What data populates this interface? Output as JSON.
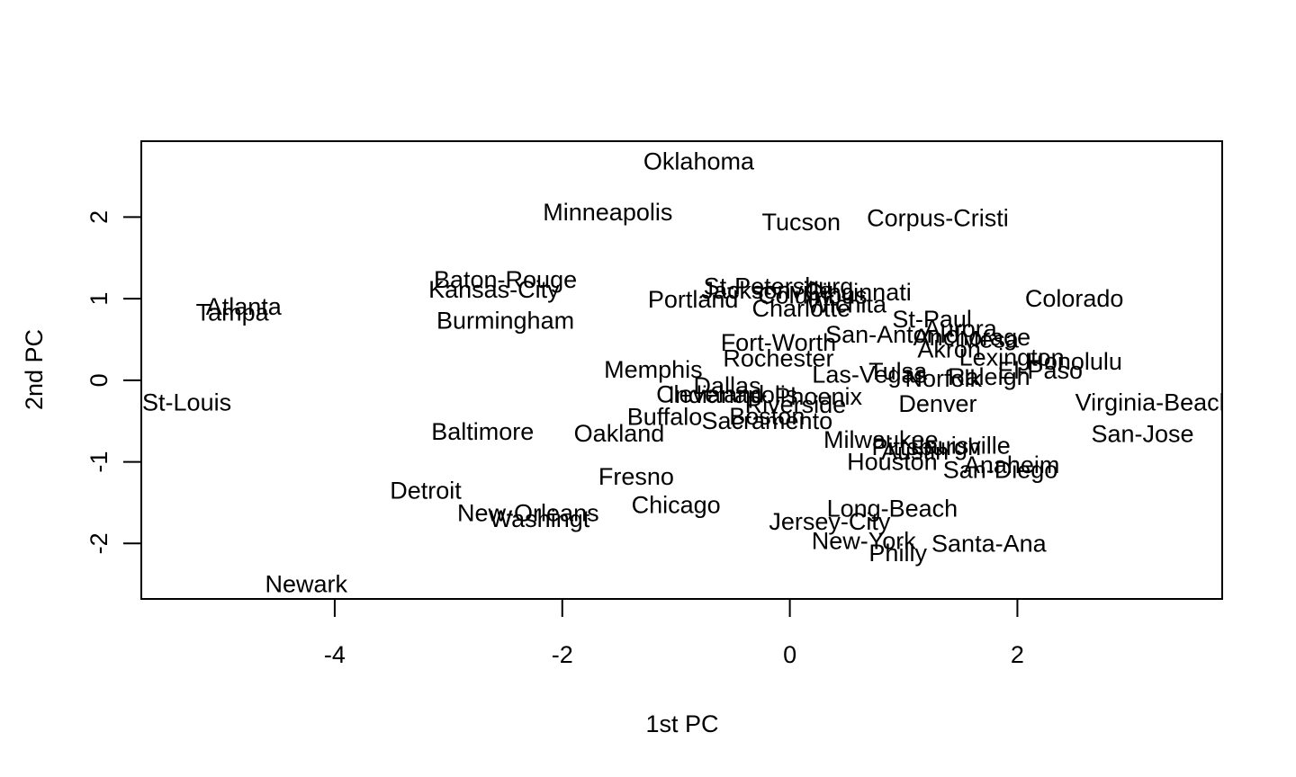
{
  "chart_data": {
    "type": "scatter",
    "title": "",
    "xlabel": "1st PC",
    "ylabel": "2nd PC",
    "xlim": [
      -5.7,
      3.8
    ],
    "ylim": [
      -2.68,
      2.93
    ],
    "xticks": [
      -4,
      -2,
      0,
      2
    ],
    "yticks": [
      -2,
      -1,
      0,
      1,
      2
    ],
    "xtick_labels": [
      "-4",
      "-2",
      "0",
      "2"
    ],
    "ytick_labels": [
      "-2",
      "-1",
      "0",
      "1",
      "2"
    ],
    "grid": false,
    "legend": "none",
    "points": [
      {
        "label": "Oklahoma",
        "x": -0.8,
        "y": 2.68
      },
      {
        "label": "Minneapolis",
        "x": -1.6,
        "y": 2.06
      },
      {
        "label": "Tucson",
        "x": 0.1,
        "y": 1.94
      },
      {
        "label": "Corpus-Cristi",
        "x": 1.3,
        "y": 1.99
      },
      {
        "label": "Baton-Rouge",
        "x": -2.5,
        "y": 1.23
      },
      {
        "label": "Kansas-City",
        "x": -2.6,
        "y": 1.11
      },
      {
        "label": "Atlanta",
        "x": -4.8,
        "y": 0.9
      },
      {
        "label": "Tampa",
        "x": -4.9,
        "y": 0.83
      },
      {
        "label": "Burmingham",
        "x": -2.5,
        "y": 0.73
      },
      {
        "label": "Portland",
        "x": -0.85,
        "y": 0.99
      },
      {
        "label": "St-Petersburg",
        "x": -0.1,
        "y": 1.15
      },
      {
        "label": "Jacksonville",
        "x": -0.2,
        "y": 1.1
      },
      {
        "label": "Cincinnati",
        "x": 0.6,
        "y": 1.08
      },
      {
        "label": "Columbus",
        "x": 0.2,
        "y": 1.04
      },
      {
        "label": "Wichita",
        "x": 0.5,
        "y": 0.93
      },
      {
        "label": "Charlotte",
        "x": 0.1,
        "y": 0.88
      },
      {
        "label": "Colorado",
        "x": 2.5,
        "y": 1.0
      },
      {
        "label": "St-Paul",
        "x": 1.25,
        "y": 0.75
      },
      {
        "label": "San-Antonio",
        "x": 0.9,
        "y": 0.56
      },
      {
        "label": "Aurora",
        "x": 1.5,
        "y": 0.63
      },
      {
        "label": "Anchorage",
        "x": 1.6,
        "y": 0.53
      },
      {
        "label": "Mesa",
        "x": 1.75,
        "y": 0.5
      },
      {
        "label": "Akron",
        "x": 1.4,
        "y": 0.38
      },
      {
        "label": "Fort-Worth",
        "x": -0.1,
        "y": 0.46
      },
      {
        "label": "Rochester",
        "x": -0.1,
        "y": 0.27
      },
      {
        "label": "Lexington",
        "x": 1.95,
        "y": 0.28
      },
      {
        "label": "Honolulu",
        "x": 2.5,
        "y": 0.23
      },
      {
        "label": "El-Paso",
        "x": 2.2,
        "y": 0.12
      },
      {
        "label": "Memphis",
        "x": -1.2,
        "y": 0.13
      },
      {
        "label": "Las-Vegas",
        "x": 0.7,
        "y": 0.07
      },
      {
        "label": "Tulsa",
        "x": 0.95,
        "y": 0.11
      },
      {
        "label": "Raleigh",
        "x": 1.75,
        "y": 0.04
      },
      {
        "label": "Norfolk",
        "x": 1.35,
        "y": 0.02
      },
      {
        "label": "Dallas",
        "x": -0.55,
        "y": -0.07
      },
      {
        "label": "Cleveland",
        "x": -0.7,
        "y": -0.17
      },
      {
        "label": "Indianapolis",
        "x": -0.5,
        "y": -0.18
      },
      {
        "label": "Phoenix",
        "x": 0.25,
        "y": -0.2
      },
      {
        "label": "Riverside",
        "x": 0.05,
        "y": -0.3
      },
      {
        "label": "St-Louis",
        "x": -5.3,
        "y": -0.27
      },
      {
        "label": "Denver",
        "x": 1.3,
        "y": -0.29
      },
      {
        "label": "Virginia-Beach",
        "x": 3.2,
        "y": -0.27
      },
      {
        "label": "Buffalo",
        "x": -1.1,
        "y": -0.45
      },
      {
        "label": "Boston",
        "x": -0.2,
        "y": -0.44
      },
      {
        "label": "Sacramento",
        "x": -0.2,
        "y": -0.5
      },
      {
        "label": "Baltimore",
        "x": -2.7,
        "y": -0.63
      },
      {
        "label": "Oakland",
        "x": -1.5,
        "y": -0.65
      },
      {
        "label": "San-Jose",
        "x": 3.1,
        "y": -0.66
      },
      {
        "label": "Milwaukee",
        "x": 0.8,
        "y": -0.73
      },
      {
        "label": "Louisville",
        "x": 1.5,
        "y": -0.8
      },
      {
        "label": "Pittsburgh",
        "x": 1.2,
        "y": -0.82
      },
      {
        "label": "Austin",
        "x": 1.1,
        "y": -0.87
      },
      {
        "label": "Houston",
        "x": 0.9,
        "y": -1.0
      },
      {
        "label": "Anaheim",
        "x": 1.95,
        "y": -1.04
      },
      {
        "label": "San-Diego",
        "x": 1.85,
        "y": -1.1
      },
      {
        "label": "Fresno",
        "x": -1.35,
        "y": -1.18
      },
      {
        "label": "Detroit",
        "x": -3.2,
        "y": -1.35
      },
      {
        "label": "Chicago",
        "x": -1.0,
        "y": -1.53
      },
      {
        "label": "New-Orleans",
        "x": -2.3,
        "y": -1.63
      },
      {
        "label": "Washingt",
        "x": -2.2,
        "y": -1.7
      },
      {
        "label": "Long-Beach",
        "x": 0.9,
        "y": -1.57
      },
      {
        "label": "Jersey-City",
        "x": 0.35,
        "y": -1.73
      },
      {
        "label": "New-York",
        "x": 0.65,
        "y": -1.97
      },
      {
        "label": "Santa-Ana",
        "x": 1.75,
        "y": -2.0
      },
      {
        "label": "Philly",
        "x": 0.95,
        "y": -2.12
      },
      {
        "label": "Newark",
        "x": -4.25,
        "y": -2.5
      }
    ]
  }
}
